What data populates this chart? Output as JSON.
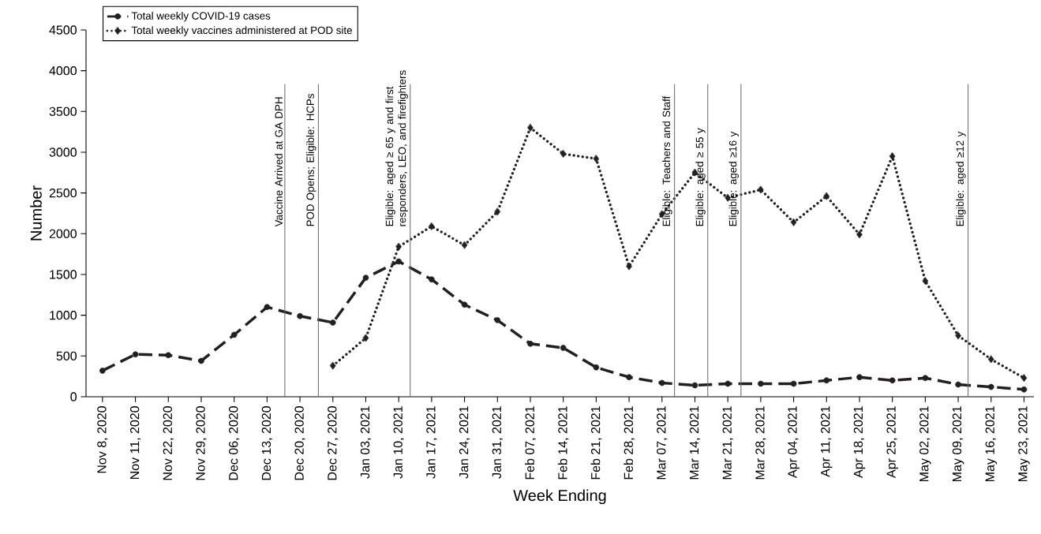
{
  "chart_data": {
    "type": "line",
    "xlabel": "Week Ending",
    "ylabel": "Number",
    "categories": [
      "Nov 8, 2020",
      "Nov 11, 2020",
      "Nov 22, 2020",
      "Nov 29, 2020",
      "Dec 06, 2020",
      "Dec 13, 2020",
      "Dec 20, 2020",
      "Dec 27, 2020",
      "Jan 03, 2021",
      "Jan 10, 2021",
      "Jan 17, 2021",
      "Jan 24, 2021",
      "Jan 31, 2021",
      "Feb 07, 2021",
      "Feb 14, 2021",
      "Feb 21, 2021",
      "Feb 28, 2021",
      "Mar 07, 2021",
      "Mar 14, 2021",
      "Mar 21, 2021",
      "Mar 28, 2021",
      "Apr 04, 2021",
      "Apr 11, 2021",
      "Apr 18, 2021",
      "Apr 25, 2021",
      "May 02, 2021",
      "May 09, 2021",
      "May 16, 2021",
      "May 23, 2021"
    ],
    "series": [
      {
        "name": "Total weekly COVID-19 cases",
        "color": "#231f20",
        "marker": "circle",
        "line_style": "dashed",
        "values": [
          320,
          520,
          510,
          440,
          760,
          1100,
          990,
          910,
          1460,
          1660,
          1440,
          1130,
          940,
          650,
          600,
          360,
          240,
          170,
          140,
          160,
          160,
          160,
          200,
          240,
          200,
          230,
          150,
          120,
          90
        ]
      },
      {
        "name": "Total weekly vaccines administered at POD site",
        "color": "#231f20",
        "marker": "diamond",
        "line_style": "dotted",
        "values": [
          null,
          null,
          null,
          null,
          null,
          null,
          null,
          380,
          720,
          1840,
          2090,
          1860,
          2270,
          3300,
          2980,
          2920,
          1600,
          2240,
          2750,
          2440,
          2540,
          2140,
          2460,
          1990,
          2950,
          1420,
          750,
          460,
          230
        ]
      }
    ],
    "ylim": [
      0,
      4500
    ],
    "yticks": [
      0,
      500,
      1000,
      1500,
      2000,
      2500,
      3000,
      3500,
      4000,
      4500
    ],
    "grid": false,
    "legend": "top left",
    "annotations": [
      "Vaccine Arrived at GA DPH",
      "POD Opens; Eligible: HCPs",
      "Eligible: aged ≥ 65 y and first responders, LEO, and firefighters",
      "Eligible: Teachers and Staff",
      "Eligible: aged ≥ 55 y",
      "Eligible: aged ≥16 y",
      "Eligible: aged ≥12 y"
    ]
  }
}
